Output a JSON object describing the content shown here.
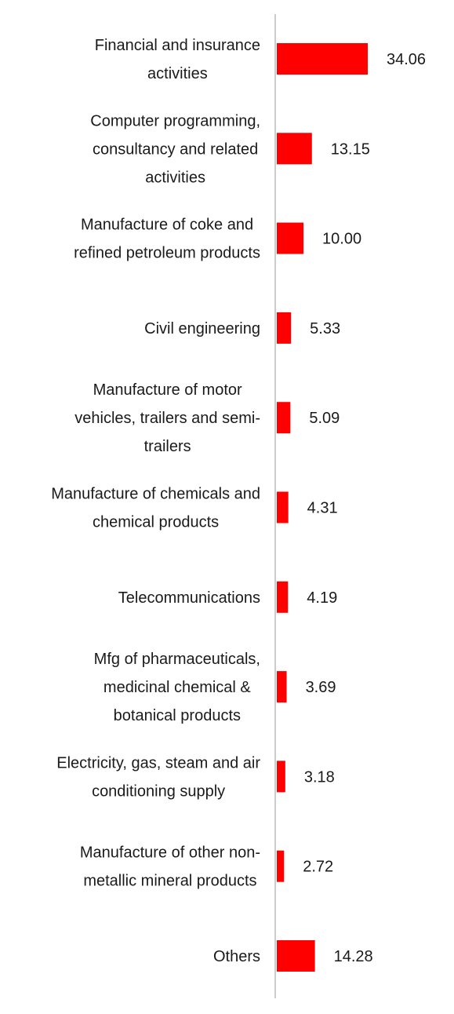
{
  "chart_data": {
    "type": "bar",
    "orientation": "horizontal",
    "title": "",
    "xlabel": "",
    "ylabel": "",
    "categories": [
      [
        "Financial and insurance",
        "activities"
      ],
      [
        "Computer programming,",
        "consultancy and related",
        "activities"
      ],
      [
        "Manufacture of coke and",
        "refined petroleum products"
      ],
      [
        "Civil engineering"
      ],
      [
        "Manufacture of motor",
        "vehicles, trailers and semi-",
        "trailers"
      ],
      [
        "Manufacture of chemicals and",
        "chemical products"
      ],
      [
        "Telecommunications"
      ],
      [
        "Mfg of pharmaceuticals,",
        "medicinal chemical &",
        "botanical products"
      ],
      [
        "Electricity, gas, steam and air",
        "conditioning supply"
      ],
      [
        "Manufacture of other non-",
        "metallic mineral products"
      ],
      [
        "Others"
      ]
    ],
    "values": [
      34.06,
      13.15,
      10.0,
      5.33,
      5.09,
      4.31,
      4.19,
      3.69,
      3.18,
      2.72,
      14.28
    ],
    "value_labels": [
      "34.06",
      "13.15",
      "10.00",
      "5.33",
      "5.09",
      "4.31",
      "4.19",
      "3.69",
      "3.18",
      "2.72",
      "14.28"
    ],
    "bar_color": "#ff0000",
    "axis_color": "#cccccc",
    "grid": false,
    "legend": "none"
  }
}
